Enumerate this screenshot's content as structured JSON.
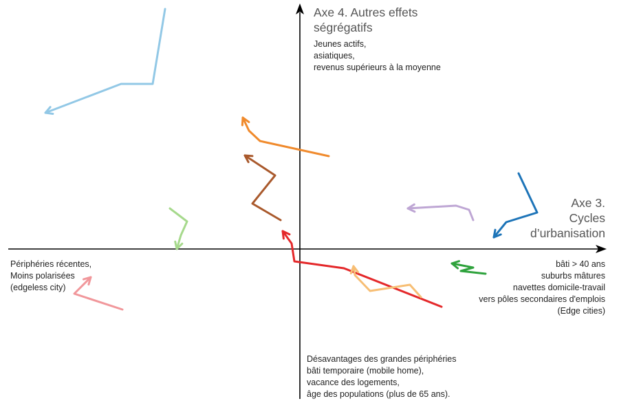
{
  "axes": {
    "y_title": "Axe 4. Autres effets\nségrégatifs",
    "x_title": "Axe 3.\nCycles\nd’urbanisation"
  },
  "annotations": {
    "top": "Jeunes actifs,\n asiatiques,\nrevenus supérieurs à la moyenne",
    "left": "Périphéries récentes,\nMoins polarisées\n(edgeless city)",
    "right": "bâti > 40 ans\nsuburbs mâtures\nnavettes domicile-travail\nvers pôles secondaires d'emplois\n(Edge cities)",
    "bottom": " Désavantages des grandes périphéries\nbâti temporaire (mobile home),\nvacance des logements,\nâge des populations (plus de 65 ans)."
  },
  "trajectories": [
    {
      "name": "light-blue",
      "color": "#92c8e6"
    },
    {
      "name": "orange",
      "color": "#f08a2c"
    },
    {
      "name": "brown",
      "color": "#a9592c"
    },
    {
      "name": "light-green",
      "color": "#a6d98c"
    },
    {
      "name": "pink",
      "color": "#f1979b"
    },
    {
      "name": "red",
      "color": "#e4282a"
    },
    {
      "name": "light-orange",
      "color": "#f7be74"
    },
    {
      "name": "lavender",
      "color": "#bea6d4"
    },
    {
      "name": "blue",
      "color": "#1d74b8"
    },
    {
      "name": "green",
      "color": "#2ea23c"
    }
  ],
  "colors": {
    "axis": "#000000",
    "text": "#222222",
    "axis_title": "#555555"
  }
}
